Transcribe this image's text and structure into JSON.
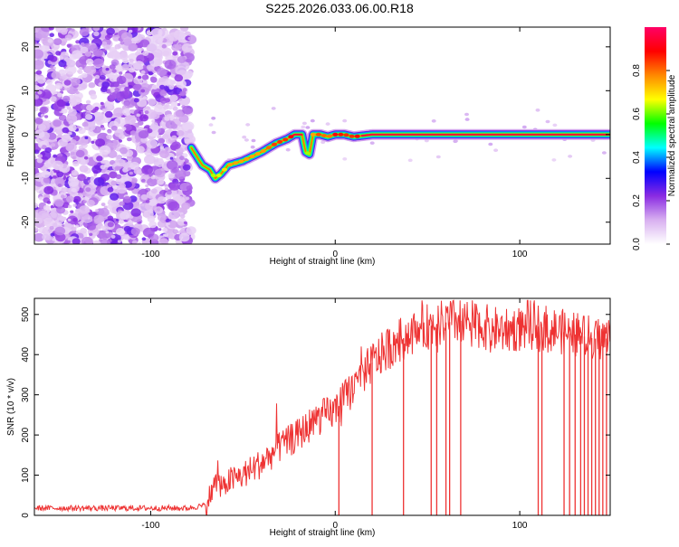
{
  "title": "S225.2026.033.06.00.R18",
  "chart_data": [
    {
      "type": "heatmap",
      "xlabel": "Height of straight line (km)",
      "ylabel": "Frequency (Hz)",
      "xlim": [
        -163,
        149
      ],
      "ylim": [
        -25,
        24.5
      ],
      "xticks": [
        -100,
        0,
        100
      ],
      "yticks": [
        -20,
        -10,
        0,
        10,
        20
      ],
      "colorbar": {
        "label": "Normalized spectral amplitude",
        "range": [
          0,
          1
        ],
        "ticks": [
          "0.0",
          "0.2",
          "0.4",
          "0.6",
          "0.8"
        ],
        "colors": [
          "#ffffff",
          "#d8b0f0",
          "#8a2be2",
          "#0000ff",
          "#00ffff",
          "#00ff00",
          "#ffff00",
          "#ff8800",
          "#ff0000",
          "#ff0066"
        ]
      },
      "noise_region_x": [
        -163,
        -78
      ],
      "ridge": {
        "x": [
          -78,
          -72,
          -68,
          -65,
          -62,
          -58,
          -50,
          -40,
          -32,
          -26,
          -22,
          -18,
          -16,
          -14,
          -12,
          -8,
          -4,
          0,
          5,
          10,
          20,
          60,
          100,
          149
        ],
        "y": [
          -3,
          -7,
          -8,
          -10,
          -9,
          -7,
          -6,
          -4,
          -2,
          -1,
          0,
          0,
          -4,
          -4.5,
          0,
          0,
          -0.5,
          0,
          0,
          -0.5,
          0,
          0,
          0,
          0
        ],
        "amplitude": [
          0.35,
          0.4,
          0.45,
          0.5,
          0.5,
          0.6,
          0.6,
          0.6,
          0.7,
          0.7,
          0.9,
          0.85,
          0.5,
          0.45,
          0.6,
          0.7,
          0.6,
          0.75,
          0.7,
          0.7,
          0.95,
          0.95,
          0.95,
          0.95
        ]
      }
    },
    {
      "type": "line",
      "xlabel": "Height of straight line (km)",
      "ylabel": "SNR (10 * v/v)",
      "xlim": [
        -163,
        149
      ],
      "ylim": [
        0,
        540
      ],
      "xticks": [
        -100,
        0,
        100
      ],
      "yticks": [
        0,
        100,
        200,
        300,
        400,
        500
      ],
      "color": "#ee3333",
      "trend": {
        "x": [
          -163,
          -80,
          -70,
          -65,
          -60,
          -50,
          -40,
          -30,
          -20,
          -10,
          0,
          10,
          20,
          30,
          40,
          50,
          60,
          70,
          80,
          90,
          100,
          110,
          120,
          130,
          140,
          149
        ],
        "y": [
          18,
          18,
          25,
          80,
          80,
          100,
          130,
          170,
          200,
          240,
          260,
          320,
          380,
          420,
          450,
          470,
          480,
          485,
          470,
          460,
          465,
          470,
          460,
          450,
          440,
          440
        ]
      },
      "dropouts_x": [
        2,
        20,
        37,
        52,
        55,
        60,
        62,
        68,
        110,
        112,
        124,
        127,
        130,
        133,
        135,
        137,
        139,
        141,
        143,
        145,
        147
      ]
    }
  ]
}
